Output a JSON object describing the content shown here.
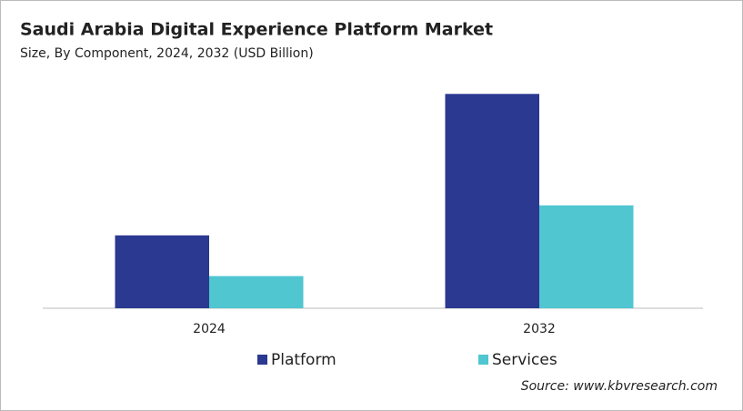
{
  "chart_data": {
    "type": "bar",
    "title": "Saudi Arabia Digital Experience Platform Market",
    "subtitle": "Size, By Component, 2024, 2032 (USD Billion)",
    "categories": [
      "2024",
      "2032"
    ],
    "series": [
      {
        "name": "Platform",
        "color": "#2b3990",
        "values": [
          0.34,
          1.0
        ]
      },
      {
        "name": "Services",
        "color": "#4fc6d0",
        "values": [
          0.15,
          0.48
        ]
      }
    ],
    "ylim": [
      0,
      1.12
    ],
    "source": "Source: www.kbvresearch.com"
  }
}
